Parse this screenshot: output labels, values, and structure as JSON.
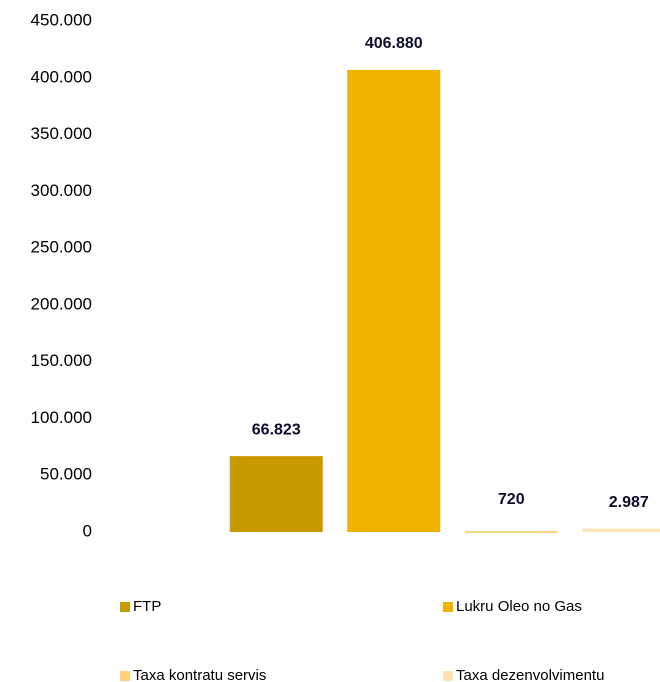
{
  "chart_data": {
    "type": "bar",
    "series": [
      {
        "name": "FTP",
        "color": "#c89a00",
        "values": [
          66823
        ],
        "value_labels": [
          "66.823"
        ]
      },
      {
        "name": "Lukru Oleo no Gas",
        "color": "#f0b400",
        "values": [
          406880
        ],
        "value_labels": [
          "406.880"
        ]
      },
      {
        "name": "Taxa kontratu servis",
        "color": "#ffd27a",
        "values": [
          720
        ],
        "value_labels": [
          "720"
        ]
      },
      {
        "name": "Taxa dezenvolvimentu",
        "color": "#fde2b8",
        "values": [
          2987
        ],
        "value_labels": [
          "2.987"
        ]
      }
    ],
    "ylim": [
      0,
      450000
    ],
    "yticks": [
      0,
      {
        "value": 50000,
        "label": "50.000"
      },
      {
        "value": 100000,
        "label": "100.000"
      },
      {
        "value": 150000,
        "label": "150.000"
      },
      {
        "value": 200000,
        "label": "200.000"
      },
      {
        "value": 250000,
        "label": "250.000"
      },
      {
        "value": 300000,
        "label": "300.000"
      },
      {
        "value": 350000,
        "label": "350.000"
      },
      {
        "value": 400000,
        "label": "400.000"
      },
      {
        "value": 450000,
        "label": "450.000"
      }
    ],
    "grid": false
  }
}
